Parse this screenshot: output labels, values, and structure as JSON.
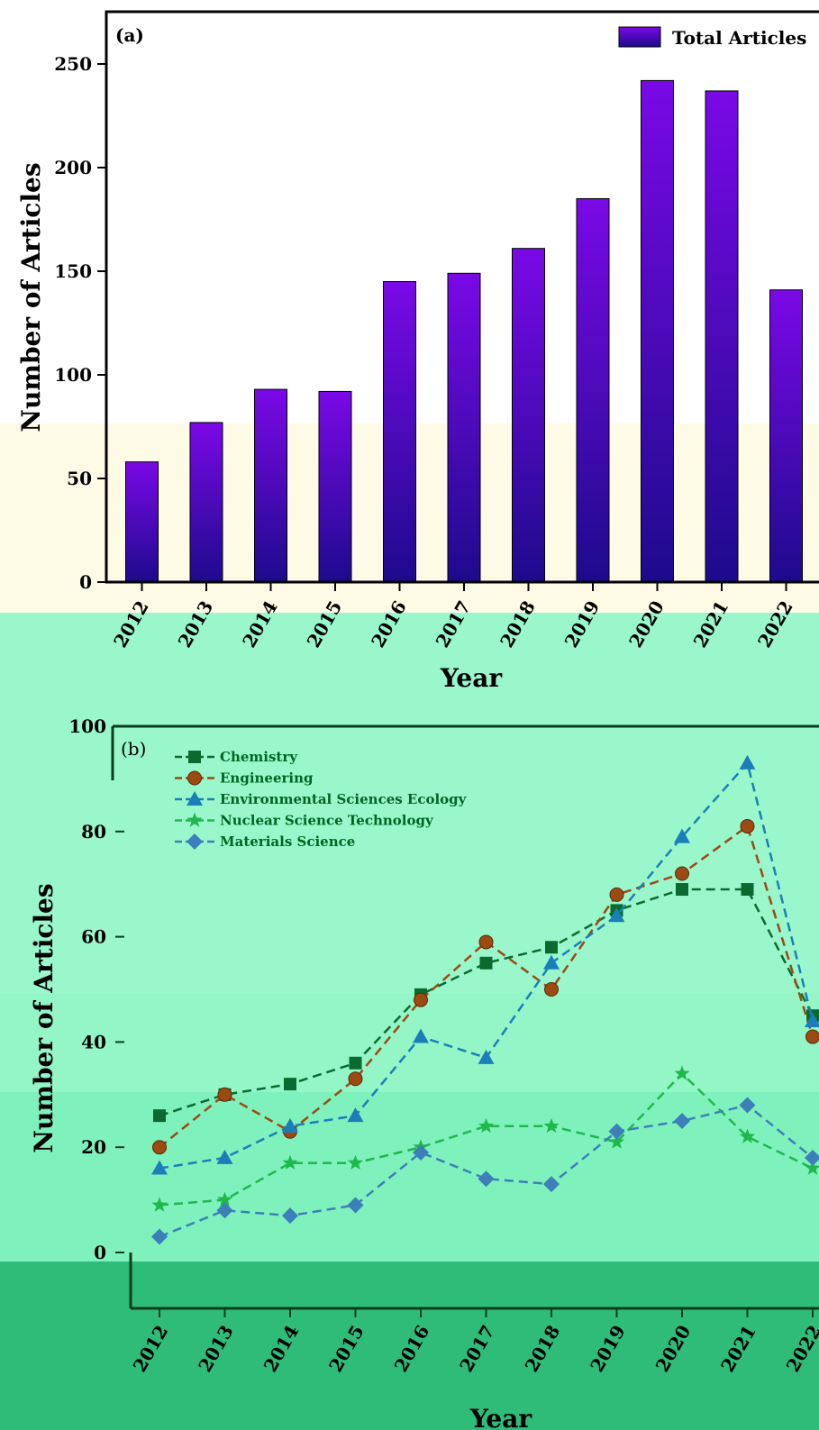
{
  "colors": {
    "bar_top": "#7a09e6",
    "bar_bottom": "#1d0a8c",
    "chemistry": "#0b6a2f",
    "engineering": "#9c4a12",
    "environmental": "#1a7fb8",
    "nuclear": "#1fb84a",
    "materials": "#3d7fb8"
  },
  "chart_data": [
    {
      "type": "bar",
      "panel_label": "(a)",
      "title": "",
      "xlabel": "Year",
      "ylabel": "Number of Articles",
      "categories": [
        "2012",
        "2013",
        "2014",
        "2015",
        "2016",
        "2017",
        "2018",
        "2019",
        "2020",
        "2021",
        "2022"
      ],
      "series": [
        {
          "name": "Total Articles",
          "values": [
            58,
            77,
            93,
            92,
            145,
            149,
            161,
            185,
            242,
            237,
            141
          ]
        }
      ],
      "ylim": [
        0,
        265
      ],
      "yticks": [
        0,
        50,
        100,
        150,
        200,
        250
      ],
      "legend": "top-right",
      "grid": false
    },
    {
      "type": "line",
      "panel_label": "(b)",
      "title": "",
      "xlabel": "Year",
      "ylabel": "Number of Articles",
      "categories": [
        "2012",
        "2013",
        "2014",
        "2015",
        "2016",
        "2017",
        "2018",
        "2019",
        "2020",
        "2021",
        "2022"
      ],
      "series": [
        {
          "name": "Chemistry",
          "marker": "square",
          "values": [
            26,
            30,
            32,
            36,
            49,
            55,
            58,
            65,
            69,
            69,
            45
          ]
        },
        {
          "name": "Engineering",
          "marker": "circle",
          "values": [
            20,
            30,
            23,
            33,
            48,
            59,
            50,
            68,
            72,
            81,
            41
          ]
        },
        {
          "name": "Environmental Sciences Ecology",
          "marker": "triangle",
          "values": [
            16,
            18,
            24,
            26,
            41,
            37,
            55,
            64,
            79,
            93,
            44
          ]
        },
        {
          "name": "Nuclear Science Technology",
          "marker": "star",
          "values": [
            9,
            10,
            17,
            17,
            20,
            24,
            24,
            21,
            34,
            22,
            16
          ]
        },
        {
          "name": "Materials Science",
          "marker": "diamond",
          "values": [
            3,
            8,
            7,
            9,
            19,
            14,
            13,
            23,
            25,
            28,
            18
          ]
        }
      ],
      "ylim": [
        0,
        100
      ],
      "yticks": [
        0,
        20,
        40,
        60,
        80,
        100
      ],
      "legend": "top-left",
      "grid": false
    }
  ]
}
